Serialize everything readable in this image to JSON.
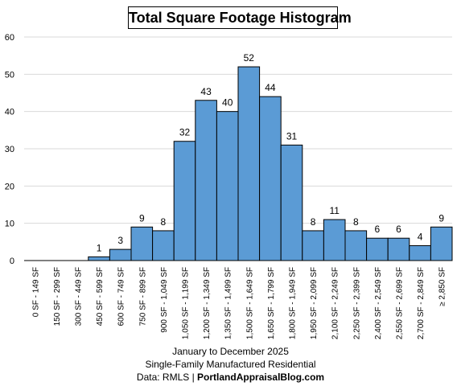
{
  "chart_data": {
    "type": "bar",
    "title": "Total Square Footage Histogram",
    "categories": [
      "0 SF - 149 SF",
      "150 SF - 299 SF",
      "300 SF - 449 SF",
      "450 SF - 599 SF",
      "600 SF - 749 SF",
      "750 SF - 899 SF",
      "900 SF - 1,049 SF",
      "1,050 SF - 1,199 SF",
      "1,200 SF - 1,349 SF",
      "1,350 SF - 1,499 SF",
      "1,500 SF - 1,649 SF",
      "1,650 SF - 1,799 SF",
      "1,800 SF - 1,949 SF",
      "1,950 SF - 2,099 SF",
      "2,100 SF - 2,249 SF",
      "2,250 SF - 2,399 SF",
      "2,400 SF - 2,549 SF",
      "2,550 SF - 2,699 SF",
      "2,700 SF - 2,849 SF",
      "≥ 2,850 SF"
    ],
    "values": [
      0,
      0,
      0,
      1,
      3,
      9,
      8,
      32,
      43,
      40,
      52,
      44,
      31,
      8,
      11,
      8,
      6,
      6,
      4,
      9
    ],
    "data_labels": [
      "",
      "",
      "",
      "1",
      "3",
      "9",
      "8",
      "32",
      "43",
      "40",
      "52",
      "44",
      "31",
      "8",
      "11",
      "8",
      "6",
      "6",
      "4",
      "9"
    ],
    "yticks": [
      "0",
      "10",
      "20",
      "30",
      "40",
      "50",
      "60"
    ],
    "ylim": [
      0,
      60
    ],
    "xlabel": "",
    "ylabel": "",
    "grid": "horizontal",
    "bar_color": "#5b9bd5",
    "bar_edge_color": "#000000",
    "grid_color": "#d9d9d9"
  },
  "captions": {
    "line1": "January to December 2025",
    "line2": "Single-Family Manufactured Residential",
    "line3_prefix": "Data: RMLS | ",
    "line3_brand": "PortlandAppraisalBlog.com"
  }
}
